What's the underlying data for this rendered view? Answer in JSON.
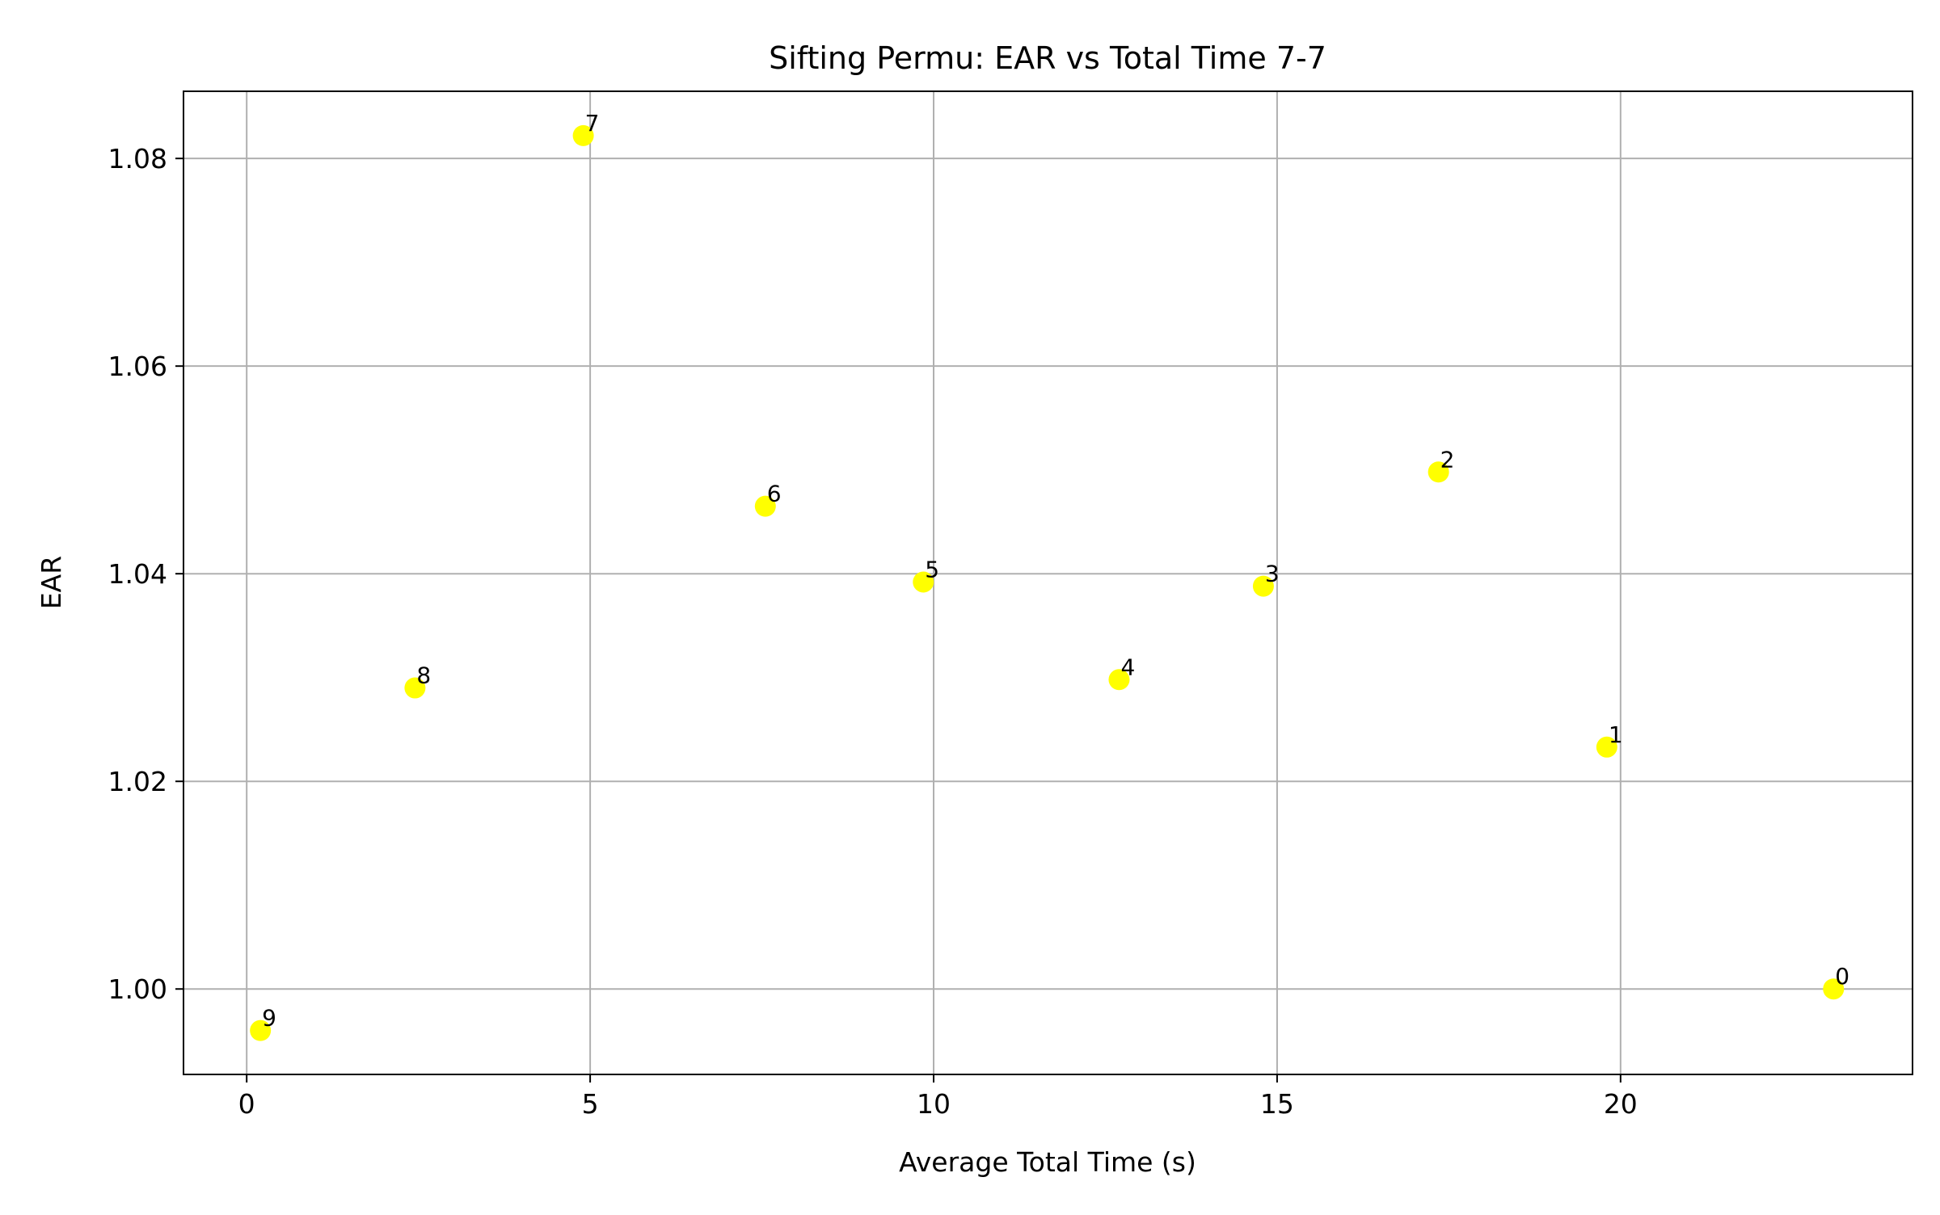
{
  "chart_data": {
    "type": "scatter",
    "title": "Sifting Permu: EAR vs Total Time 7-7",
    "xlabel": "Average Total Time (s)",
    "ylabel": "EAR",
    "xlim": [
      -0.92,
      24.25
    ],
    "ylim": [
      0.99177,
      1.08647
    ],
    "x_ticks": [
      0,
      5,
      10,
      15,
      20
    ],
    "y_ticks": [
      1.0,
      1.02,
      1.04,
      1.06,
      1.08
    ],
    "x_tick_labels": [
      "0",
      "5",
      "10",
      "15",
      "20"
    ],
    "y_tick_labels": [
      "1.00",
      "1.02",
      "1.04",
      "1.06",
      "1.08"
    ],
    "grid": true,
    "point_color": "#ffff00",
    "points": [
      {
        "label": "0",
        "x": 23.1,
        "y": 1.0
      },
      {
        "label": "1",
        "x": 19.8,
        "y": 1.0233
      },
      {
        "label": "2",
        "x": 17.35,
        "y": 1.0498
      },
      {
        "label": "3",
        "x": 14.8,
        "y": 1.0388
      },
      {
        "label": "4",
        "x": 12.7,
        "y": 1.0298
      },
      {
        "label": "5",
        "x": 9.85,
        "y": 1.0392
      },
      {
        "label": "6",
        "x": 7.55,
        "y": 1.0465
      },
      {
        "label": "7",
        "x": 4.9,
        "y": 1.0822
      },
      {
        "label": "8",
        "x": 2.45,
        "y": 1.029
      },
      {
        "label": "9",
        "x": 0.2,
        "y": 0.996
      }
    ]
  }
}
